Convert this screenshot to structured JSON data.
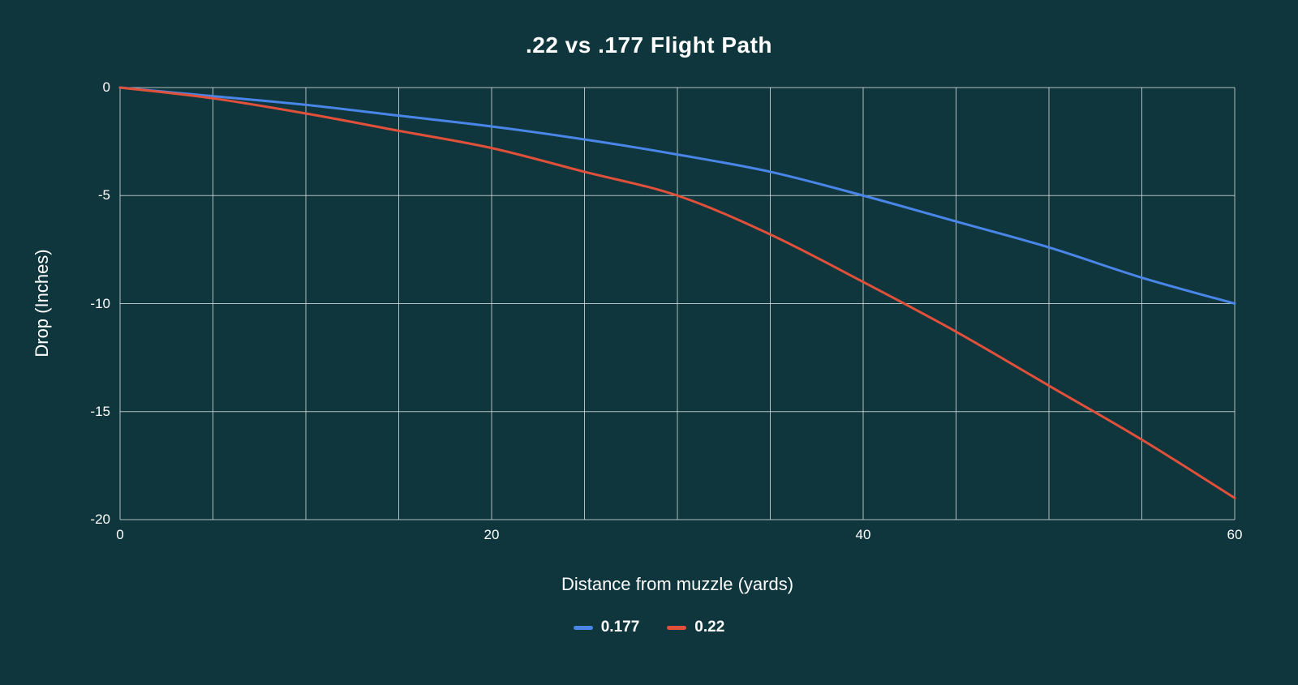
{
  "chart_data": {
    "type": "line",
    "title": ".22 vs .177 Flight Path",
    "xlabel": "Distance from muzzle (yards)",
    "ylabel": "Drop (Inches)",
    "x": [
      0,
      5,
      10,
      15,
      20,
      25,
      30,
      35,
      40,
      45,
      50,
      55,
      60
    ],
    "series": [
      {
        "name": "0.177",
        "color": "#4a86e8",
        "values": [
          0,
          -0.4,
          -0.8,
          -1.3,
          -1.8,
          -2.4,
          -3.1,
          -3.9,
          -5.0,
          -6.2,
          -7.4,
          -8.8,
          -10.0
        ]
      },
      {
        "name": "0.22",
        "color": "#e0503a",
        "values": [
          0,
          -0.5,
          -1.2,
          -2.0,
          -2.8,
          -3.9,
          -5.0,
          -6.8,
          -9.0,
          -11.3,
          -13.8,
          -16.3,
          -19.0
        ]
      }
    ],
    "xlim": [
      0,
      60
    ],
    "ylim": [
      -20,
      0
    ],
    "x_gridline_step": 5,
    "x_tick_labels": [
      "0",
      "20",
      "40",
      "60"
    ],
    "x_tick_values": [
      0,
      20,
      40,
      60
    ],
    "y_tick_labels": [
      "0",
      "-5",
      "-10",
      "-15",
      "-20"
    ],
    "y_tick_values": [
      0,
      -5,
      -10,
      -15,
      -20
    ],
    "grid": true,
    "legend_position": "bottom",
    "colors": {
      "background": "#0e363c",
      "gridline": "#cfd6d8",
      "text": "#ffffff"
    }
  }
}
